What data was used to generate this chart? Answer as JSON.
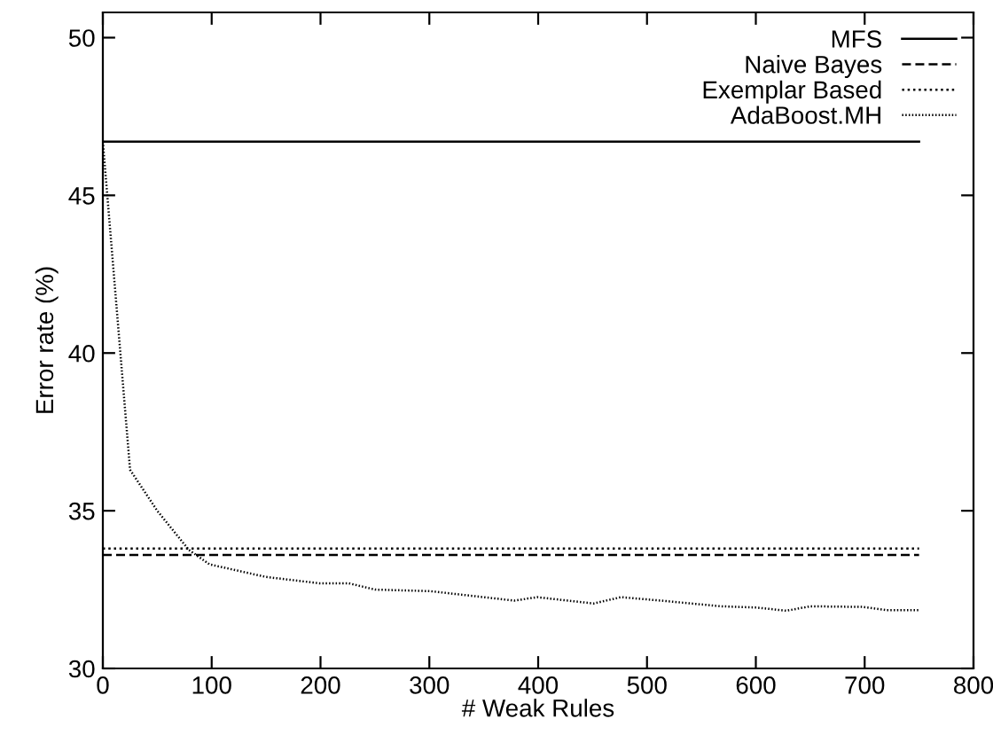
{
  "chart_data": {
    "type": "line",
    "xlabel": "# Weak Rules",
    "ylabel": "Error rate (%)",
    "xlim": [
      0,
      800
    ],
    "ylim": [
      30,
      50.8
    ],
    "xticks": [
      0,
      100,
      200,
      300,
      400,
      500,
      600,
      700,
      800
    ],
    "yticks": [
      30,
      35,
      40,
      45,
      50
    ],
    "legend": "top right",
    "grid": false,
    "marker": "none",
    "series": [
      {
        "name": "MFS",
        "color": "#000000",
        "line_style": "solid",
        "x": [
          0,
          750
        ],
        "values": [
          46.7,
          46.7
        ]
      },
      {
        "name": "Naive Bayes",
        "color": "#000000",
        "line_style": "dashed",
        "x": [
          0,
          750
        ],
        "values": [
          33.6,
          33.6
        ]
      },
      {
        "name": "Exemplar Based",
        "color": "#000000",
        "line_style": "dotted",
        "x": [
          0,
          750
        ],
        "values": [
          33.8,
          33.8
        ]
      },
      {
        "name": "AdaBoost.MH",
        "color": "#000000",
        "line_style": "dotted",
        "x": [
          0,
          25,
          50,
          79,
          98,
          150,
          199,
          226,
          250,
          301,
          378,
          399,
          451,
          476,
          513,
          568,
          601,
          628,
          650,
          699,
          720,
          750
        ],
        "values": [
          46.7,
          36.3,
          35.0,
          33.76,
          33.3,
          32.9,
          32.7,
          32.7,
          32.5,
          32.45,
          32.15,
          32.26,
          32.06,
          32.26,
          32.15,
          31.97,
          31.93,
          31.83,
          31.97,
          31.95,
          31.85,
          31.85
        ]
      }
    ]
  }
}
